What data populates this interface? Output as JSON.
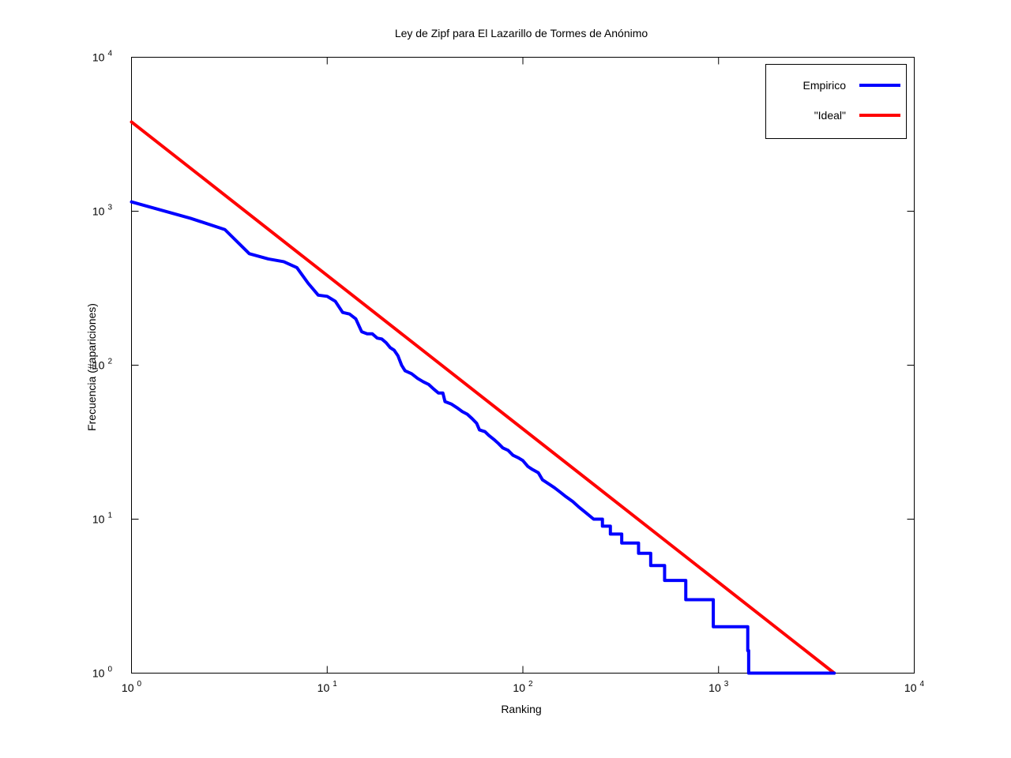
{
  "chart_data": {
    "type": "line",
    "title": "Ley de Zipf para El Lazarillo de Tormes de Anónimo",
    "xlabel": "Ranking",
    "ylabel": "Frecuencia (#apariciones)",
    "x_scale": "log",
    "y_scale": "log",
    "xlim": [
      1,
      10000
    ],
    "ylim": [
      1,
      10000
    ],
    "x_ticks": [
      {
        "value": 1,
        "base": "10",
        "exp": "0"
      },
      {
        "value": 10,
        "base": "10",
        "exp": "1"
      },
      {
        "value": 100,
        "base": "10",
        "exp": "2"
      },
      {
        "value": 1000,
        "base": "10",
        "exp": "3"
      },
      {
        "value": 10000,
        "base": "10",
        "exp": "4"
      }
    ],
    "y_ticks": [
      {
        "value": 1,
        "base": "10",
        "exp": "0"
      },
      {
        "value": 10,
        "base": "10",
        "exp": "1"
      },
      {
        "value": 100,
        "base": "10",
        "exp": "2"
      },
      {
        "value": 1000,
        "base": "10",
        "exp": "3"
      },
      {
        "value": 10000,
        "base": "10",
        "exp": "4"
      }
    ],
    "grid": false,
    "legend_position": "top-right",
    "series": [
      {
        "name": "Empirico",
        "color": "#0000ff",
        "points": [
          [
            1,
            1150
          ],
          [
            2,
            900
          ],
          [
            3,
            760
          ],
          [
            4,
            530
          ],
          [
            5,
            490
          ],
          [
            6,
            470
          ],
          [
            7,
            430
          ],
          [
            8,
            340
          ],
          [
            9,
            285
          ],
          [
            10,
            280
          ],
          [
            11,
            260
          ],
          [
            12,
            220
          ],
          [
            13,
            215
          ],
          [
            14,
            200
          ],
          [
            15,
            165
          ],
          [
            16,
            160
          ],
          [
            17,
            160
          ],
          [
            18,
            150
          ],
          [
            19,
            148
          ],
          [
            20,
            140
          ],
          [
            21,
            130
          ],
          [
            22,
            125
          ],
          [
            23,
            115
          ],
          [
            24,
            100
          ],
          [
            25,
            92
          ],
          [
            27,
            88
          ],
          [
            29,
            82
          ],
          [
            31,
            78
          ],
          [
            33,
            75
          ],
          [
            35,
            70
          ],
          [
            37,
            66
          ],
          [
            39,
            66
          ],
          [
            40,
            58
          ],
          [
            43,
            56
          ],
          [
            46,
            53
          ],
          [
            49,
            50
          ],
          [
            52,
            48
          ],
          [
            55,
            45
          ],
          [
            58,
            42
          ],
          [
            60,
            38
          ],
          [
            64,
            37
          ],
          [
            67,
            35
          ],
          [
            71,
            33
          ],
          [
            75,
            31
          ],
          [
            79,
            29
          ],
          [
            84,
            28
          ],
          [
            89,
            26
          ],
          [
            95,
            25
          ],
          [
            100,
            24
          ],
          [
            106,
            22
          ],
          [
            112,
            21
          ],
          [
            120,
            20
          ],
          [
            126,
            18
          ],
          [
            135,
            17
          ],
          [
            145,
            16
          ],
          [
            155,
            15
          ],
          [
            166,
            14
          ],
          [
            180,
            13
          ],
          [
            193,
            12
          ],
          [
            210,
            11
          ],
          [
            230,
            10
          ],
          [
            255,
            10
          ],
          [
            255,
            9
          ],
          [
            280,
            9
          ],
          [
            280,
            8
          ],
          [
            320,
            8
          ],
          [
            320,
            7
          ],
          [
            390,
            7
          ],
          [
            390,
            6
          ],
          [
            450,
            6
          ],
          [
            450,
            5
          ],
          [
            530,
            5
          ],
          [
            530,
            4
          ],
          [
            680,
            4
          ],
          [
            680,
            3
          ],
          [
            940,
            3
          ],
          [
            940,
            2
          ],
          [
            1410,
            2
          ],
          [
            1410,
            1.4
          ],
          [
            1425,
            1.4
          ],
          [
            1425,
            1
          ],
          [
            3900,
            1
          ]
        ]
      },
      {
        "name": "\"Ideal\"",
        "color": "#ff0000",
        "points": [
          [
            1,
            3800
          ],
          [
            3900,
            1
          ]
        ]
      }
    ]
  }
}
